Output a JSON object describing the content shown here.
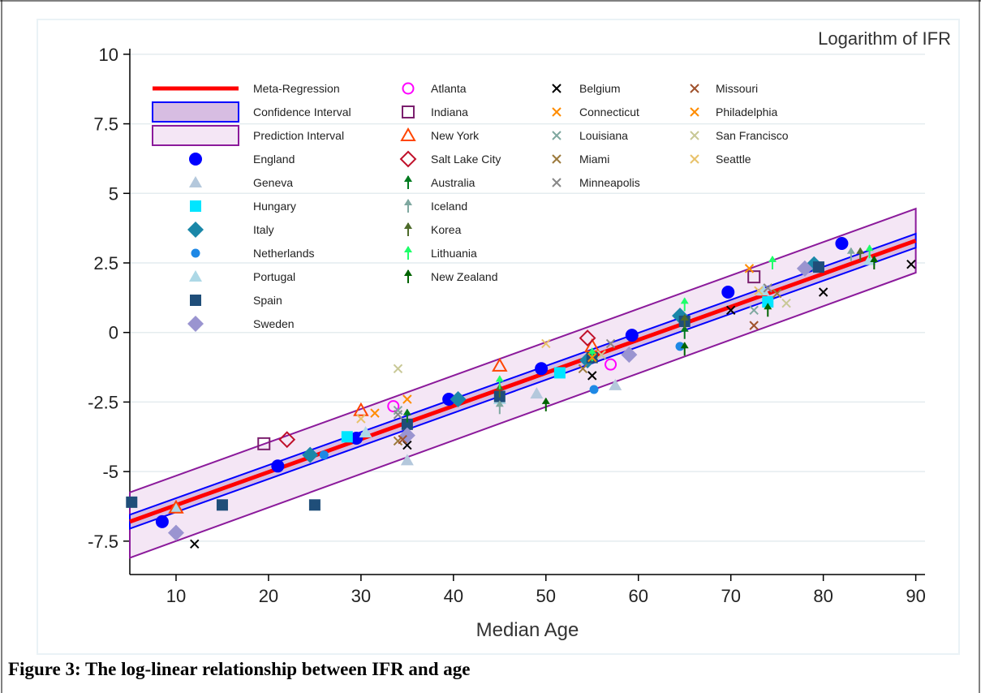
{
  "caption": "Figure 3: The log-linear relationship between IFR and age",
  "chart_data": {
    "type": "scatter",
    "title": "Logarithm of IFR",
    "xlabel": "Median Age",
    "ylabel": "",
    "xlim": [
      5,
      91
    ],
    "ylim": [
      -8.7,
      10.2
    ],
    "xticks": [
      10,
      20,
      30,
      40,
      50,
      60,
      70,
      80,
      90
    ],
    "yticks": [
      10,
      7.5,
      5,
      2.5,
      0,
      -2.5,
      -5,
      -7.5
    ],
    "xtick_labels": [
      "10",
      "20",
      "30",
      "40",
      "50",
      "60",
      "70",
      "80",
      "90"
    ],
    "ytick_labels": [
      "10",
      "7.5",
      "5",
      "2.5",
      "0",
      "-2.5",
      "-5",
      "-7.5"
    ],
    "grid": true,
    "legend_position": "top",
    "regression": {
      "name": "Meta-Regression",
      "x": [
        5,
        90
      ],
      "y": [
        -6.8,
        3.3
      ],
      "color": "#ff0000"
    },
    "confidence_interval": {
      "name": "Confidence Interval",
      "x": [
        5,
        90
      ],
      "lower": [
        -7.05,
        3.05
      ],
      "upper": [
        -6.55,
        3.55
      ],
      "fill": "#d7bde2",
      "stroke": "#0000ff"
    },
    "prediction_interval": {
      "name": "Prediction Interval",
      "x": [
        5,
        90
      ],
      "lower": [
        -8.1,
        2.15
      ],
      "upper": [
        -5.75,
        4.45
      ],
      "fill": "#f4e6f5",
      "stroke": "#8b1a9b"
    },
    "series": [
      {
        "name": "England",
        "marker": "circle",
        "color": "#0000ff",
        "points": [
          [
            8.5,
            -6.8
          ],
          [
            21,
            -4.8
          ],
          [
            29.5,
            -3.8
          ],
          [
            39.5,
            -2.4
          ],
          [
            49.5,
            -1.3
          ],
          [
            59.3,
            -0.1
          ],
          [
            69.7,
            1.45
          ],
          [
            82,
            3.2
          ]
        ]
      },
      {
        "name": "Geneva",
        "marker": "triangle",
        "color": "#b4c8dc",
        "points": [
          [
            35,
            -4.6
          ],
          [
            57.5,
            -1.9
          ],
          [
            49,
            -2.2
          ]
        ]
      },
      {
        "name": "Hungary",
        "marker": "square",
        "color": "#00e5ff",
        "points": [
          [
            28.5,
            -3.75
          ],
          [
            51.5,
            -1.45
          ],
          [
            74,
            1.1
          ]
        ]
      },
      {
        "name": "Italy",
        "marker": "diamond",
        "color": "#1a87a8",
        "points": [
          [
            24.5,
            -4.4
          ],
          [
            40.5,
            -2.4
          ],
          [
            54.5,
            -1.0
          ],
          [
            64.5,
            0.6
          ],
          [
            79,
            2.45
          ]
        ]
      },
      {
        "name": "Netherlands",
        "marker": "circle-small",
        "color": "#1e88e5",
        "points": [
          [
            26,
            -4.4
          ],
          [
            55.2,
            -2.05
          ],
          [
            64.5,
            -0.5
          ]
        ]
      },
      {
        "name": "Portugal",
        "marker": "triangle",
        "color": "#add8e6",
        "points": [
          [
            10,
            -6.3
          ],
          [
            30.5,
            -3.6
          ],
          [
            45,
            -2.4
          ],
          [
            73.5,
            1.5
          ],
          [
            85,
            2.6
          ]
        ]
      },
      {
        "name": "Spain",
        "marker": "square",
        "color": "#1f4e79",
        "points": [
          [
            5.2,
            -6.1
          ],
          [
            15,
            -6.2
          ],
          [
            25,
            -6.2
          ],
          [
            35,
            -3.3
          ],
          [
            45,
            -2.3
          ],
          [
            55,
            -0.9
          ],
          [
            65,
            0.4
          ],
          [
            79.5,
            2.35
          ]
        ]
      },
      {
        "name": "Sweden",
        "marker": "diamond",
        "color": "#9a94d0",
        "points": [
          [
            10,
            -7.2
          ],
          [
            35,
            -3.7
          ],
          [
            59,
            -0.8
          ],
          [
            78,
            2.3
          ]
        ]
      },
      {
        "name": "Atlanta",
        "marker": "circle-open",
        "color": "#ff00ff",
        "points": [
          [
            33.5,
            -2.65
          ],
          [
            57,
            -1.15
          ]
        ]
      },
      {
        "name": "Indiana",
        "marker": "square-open",
        "color": "#7b1f6e",
        "points": [
          [
            19.5,
            -4.0
          ],
          [
            72.5,
            2.0
          ]
        ]
      },
      {
        "name": "New York",
        "marker": "triangle-open",
        "color": "#ff4500",
        "points": [
          [
            10,
            -6.3
          ],
          [
            30,
            -2.8
          ],
          [
            45,
            -1.2
          ],
          [
            55,
            -0.5
          ]
        ]
      },
      {
        "name": "Salt Lake City",
        "marker": "diamond-open",
        "color": "#c0102a",
        "points": [
          [
            22,
            -3.85
          ],
          [
            54.5,
            -0.2
          ]
        ]
      },
      {
        "name": "Australia",
        "marker": "spike",
        "color": "#007a1f",
        "points": [
          [
            35,
            -3.0
          ],
          [
            65,
            0.0
          ]
        ]
      },
      {
        "name": "Iceland",
        "marker": "spike",
        "color": "#7fa8a0",
        "points": [
          [
            45,
            -2.7
          ],
          [
            83,
            2.8
          ]
        ]
      },
      {
        "name": "Korea",
        "marker": "spike",
        "color": "#4d6b2a",
        "points": [
          [
            45,
            -2.1
          ],
          [
            65,
            0.4
          ],
          [
            84,
            2.8
          ]
        ]
      },
      {
        "name": "Lithuania",
        "marker": "spike",
        "color": "#1eff6a",
        "points": [
          [
            45,
            -1.8
          ],
          [
            55,
            -0.8
          ],
          [
            65,
            1.0
          ],
          [
            74.5,
            2.5
          ],
          [
            85,
            2.9
          ]
        ]
      },
      {
        "name": "New Zealand",
        "marker": "spike",
        "color": "#006400",
        "points": [
          [
            50,
            -2.6
          ],
          [
            65,
            -0.6
          ],
          [
            74,
            0.8
          ],
          [
            85.5,
            2.5
          ]
        ]
      },
      {
        "name": "Belgium",
        "marker": "x",
        "color": "#000000",
        "points": [
          [
            12,
            -7.6
          ],
          [
            35,
            -4.05
          ],
          [
            55,
            -1.55
          ],
          [
            70,
            0.8
          ],
          [
            80,
            1.45
          ],
          [
            89.5,
            2.45
          ]
        ]
      },
      {
        "name": "Connecticut",
        "marker": "x",
        "color": "#ff8c00",
        "points": [
          [
            31.5,
            -2.9
          ],
          [
            55,
            -0.9
          ]
        ]
      },
      {
        "name": "Louisiana",
        "marker": "x",
        "color": "#7fa8a0",
        "points": [
          [
            34,
            -2.8
          ],
          [
            72.5,
            0.8
          ]
        ]
      },
      {
        "name": "Miami",
        "marker": "x",
        "color": "#9c7a3c",
        "points": [
          [
            34,
            -3.9
          ],
          [
            54,
            -1.3
          ],
          [
            75,
            1.4
          ]
        ]
      },
      {
        "name": "Minneapolis",
        "marker": "x",
        "color": "#888888",
        "points": [
          [
            34,
            -2.95
          ],
          [
            57,
            -0.4
          ],
          [
            74,
            1.6
          ]
        ]
      },
      {
        "name": "Missouri",
        "marker": "x",
        "color": "#a0522d",
        "points": [
          [
            34.5,
            -3.85
          ],
          [
            72.5,
            0.25
          ]
        ]
      },
      {
        "name": "Philadelphia",
        "marker": "x",
        "color": "#ff8c00",
        "points": [
          [
            35,
            -2.4
          ],
          [
            72,
            2.3
          ]
        ]
      },
      {
        "name": "San Francisco",
        "marker": "x",
        "color": "#c8c896",
        "points": [
          [
            34,
            -1.3
          ],
          [
            56,
            -0.8
          ],
          [
            76,
            1.05
          ]
        ]
      },
      {
        "name": "Seattle",
        "marker": "x",
        "color": "#e8c26a",
        "points": [
          [
            30,
            -3.1
          ],
          [
            50,
            -0.4
          ],
          [
            73,
            1.5
          ]
        ]
      }
    ],
    "legend_columns": [
      [
        "Meta-Regression",
        "Confidence Interval",
        "Prediction Interval",
        "England",
        "Geneva",
        "Hungary",
        "Italy",
        "Netherlands",
        "Portugal",
        "Spain",
        "Sweden"
      ],
      [
        "Atlanta",
        "Indiana",
        "New York",
        "Salt Lake City",
        "Australia",
        "Iceland",
        "Korea",
        "Lithuania",
        "New Zealand"
      ],
      [
        "Belgium",
        "Connecticut",
        "Louisiana",
        "Miami",
        "Minneapolis"
      ],
      [
        "Missouri",
        "Philadelphia",
        "San Francisco",
        "Seattle"
      ]
    ]
  }
}
